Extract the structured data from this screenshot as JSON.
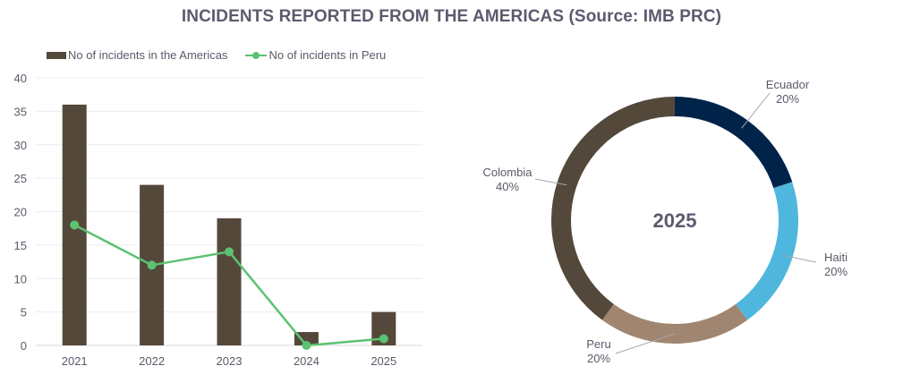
{
  "title": "INCIDENTS REPORTED FROM THE AMERICAS (Source: IMB PRC)",
  "chart_data": [
    {
      "type": "bar",
      "title": "",
      "categories": [
        "2021",
        "2022",
        "2023",
        "2024",
        "2025"
      ],
      "series": [
        {
          "name": "No of incidents in the Americas",
          "kind": "bar",
          "color": "#54483a",
          "values": [
            36,
            24,
            19,
            2,
            5
          ]
        },
        {
          "name": "No of incidents in Peru",
          "kind": "line",
          "color": "#5cc271",
          "values": [
            18,
            12,
            14,
            0,
            1
          ]
        }
      ],
      "xlabel": "",
      "ylabel": "",
      "ylim": [
        0,
        40
      ],
      "yticks": [
        "0",
        "5",
        "10",
        "15",
        "20",
        "25",
        "30",
        "35",
        "40"
      ],
      "grid": true,
      "legend": "top-left"
    },
    {
      "type": "pie",
      "subtype": "donut",
      "center_label": "2025",
      "slices": [
        {
          "label": "Ecuador",
          "value": 20,
          "pct": "20%",
          "color": "#00234a"
        },
        {
          "label": "Haiti",
          "value": 20,
          "pct": "20%",
          "color": "#4fb7de"
        },
        {
          "label": "Peru",
          "value": 20,
          "pct": "20%",
          "color": "#a08670"
        },
        {
          "label": "Colombia",
          "value": 40,
          "pct": "40%",
          "color": "#54483a"
        }
      ]
    }
  ]
}
